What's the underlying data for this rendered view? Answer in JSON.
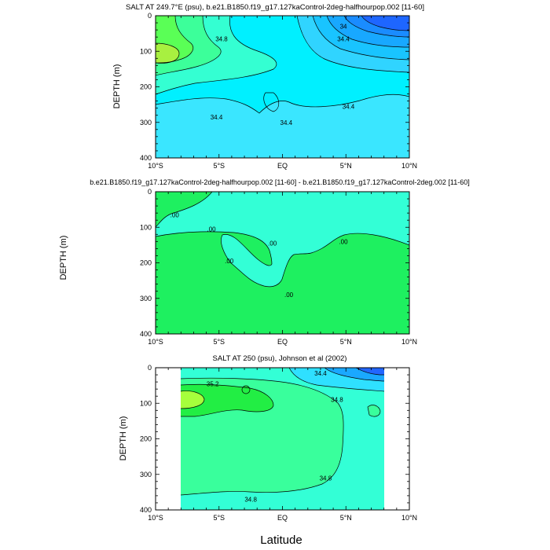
{
  "figure": {
    "xlabel": "Latitude"
  },
  "chart_data": [
    {
      "type": "contour",
      "title": "SALT AT 249.7°E (psu), b.e21.B1850.f19_g17.127kaControl-2deg-halfhourpop.002 [11-60]",
      "ylabel": "DEPTH (m)",
      "x_ticks": [
        "10°S",
        "5°S",
        "EQ",
        "5°N",
        "10°N"
      ],
      "y_ticks": [
        "0",
        "100",
        "200",
        "300",
        "400"
      ],
      "xlim": [
        -10,
        10
      ],
      "ylim": [
        400,
        0
      ],
      "contour_labels": [
        {
          "text": "34",
          "lat": 4.8,
          "depth": 30
        },
        {
          "text": "34.4",
          "lat": 4.8,
          "depth": 65
        },
        {
          "text": "34.8",
          "lat": -4.8,
          "depth": 65
        },
        {
          "text": "34.4",
          "lat": -5.2,
          "depth": 285
        },
        {
          "text": "34.4",
          "lat": 0.3,
          "depth": 300
        },
        {
          "text": "34.4",
          "lat": 5.2,
          "depth": 255
        }
      ]
    },
    {
      "type": "contour",
      "title": "b.e21.B1850.f19_g17.127kaControl-2deg-halfhourpop.002 [11-60] - b.e21.B1850.f19_g17.127kaControl-2deg.002 [11-60]",
      "ylabel": "DEPTH (m)",
      "x_ticks": [
        "10°S",
        "5°S",
        "EQ",
        "5°N",
        "10°N"
      ],
      "y_ticks": [
        "0",
        "100",
        "200",
        "300",
        "400"
      ],
      "xlim": [
        -10,
        10
      ],
      "ylim": [
        400,
        0
      ],
      "contour_labels": [
        {
          "text": ".00",
          "lat": -8.5,
          "depth": 65
        },
        {
          "text": ".00",
          "lat": -5.6,
          "depth": 105
        },
        {
          "text": ".00",
          "lat": -4.2,
          "depth": 195
        },
        {
          "text": ".00",
          "lat": -0.8,
          "depth": 145
        },
        {
          "text": ".00",
          "lat": 0.5,
          "depth": 290
        },
        {
          "text": ".00",
          "lat": 4.8,
          "depth": 140
        }
      ]
    },
    {
      "type": "contour",
      "title": "SALT AT 250 (psu), Johnson et al (2002)",
      "ylabel": "DEPTH (m)",
      "x_ticks": [
        "10°S",
        "5°S",
        "EQ",
        "5°N",
        "10°N"
      ],
      "y_ticks": [
        "0",
        "100",
        "200",
        "300",
        "400"
      ],
      "xlim": [
        -10,
        10
      ],
      "ylim": [
        400,
        0
      ],
      "data_extent_lat": [
        -8,
        8
      ],
      "contour_labels": [
        {
          "text": "35.2",
          "lat": -5.5,
          "depth": 45
        },
        {
          "text": "34.4",
          "lat": 3,
          "depth": 15
        },
        {
          "text": "34.8",
          "lat": 4.3,
          "depth": 90
        },
        {
          "text": "34.8",
          "lat": 3.4,
          "depth": 310
        },
        {
          "text": "34.8",
          "lat": -2.5,
          "depth": 370
        }
      ]
    }
  ]
}
